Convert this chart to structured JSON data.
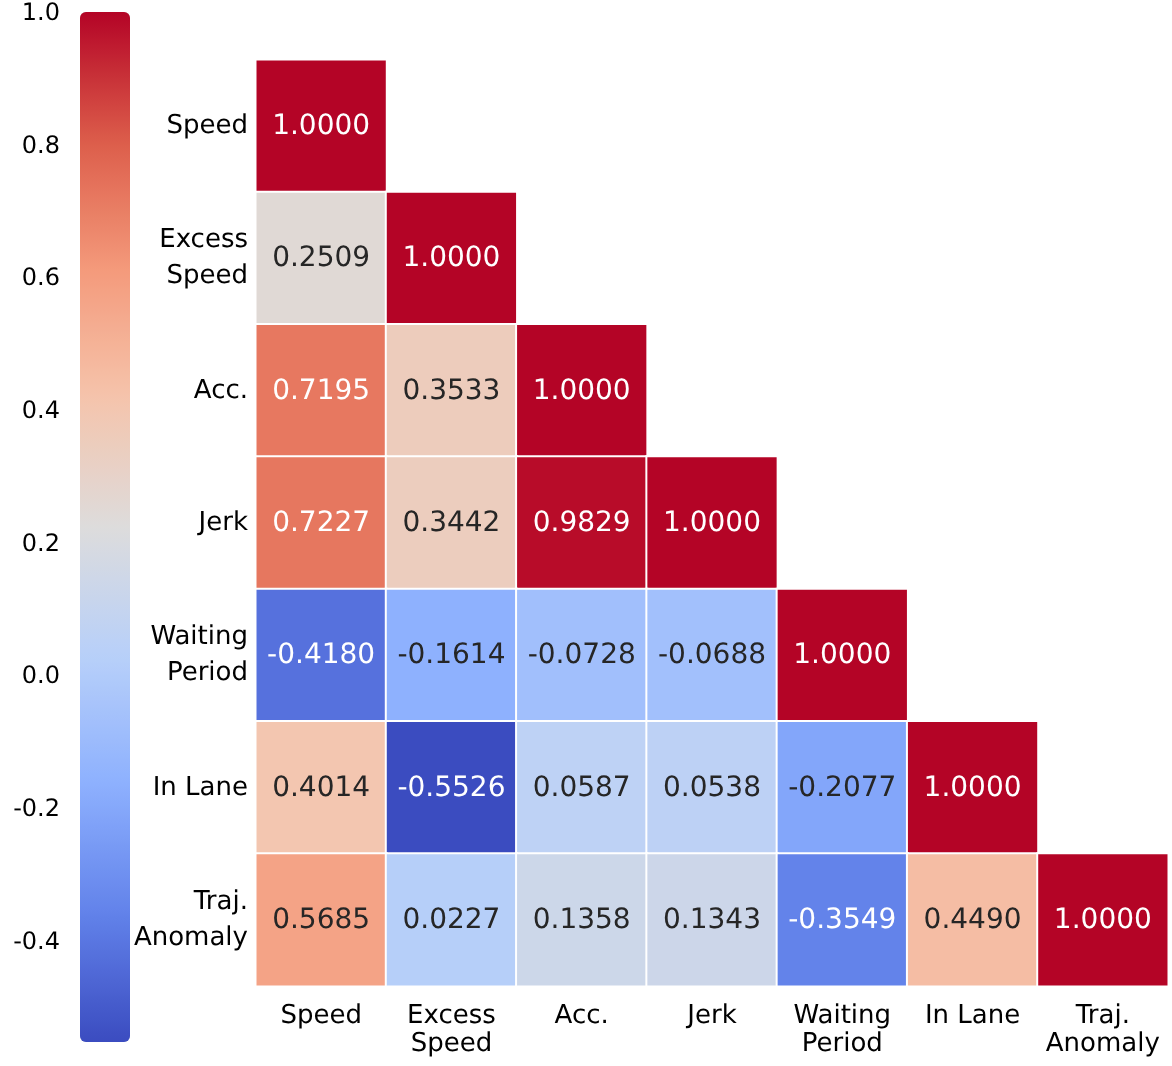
{
  "chart_data": {
    "type": "heatmap",
    "categories": [
      "Speed",
      "Excess\nSpeed",
      "Acc.",
      "Jerk",
      "Waiting\nPeriod",
      "In Lane",
      "Traj.\nAnomaly"
    ],
    "y_categories": [
      "Speed",
      "Excess\nSpeed",
      "Acc.",
      "Jerk",
      "Waiting\nPeriod",
      "In Lane",
      "Traj.\nAnomaly"
    ],
    "cells": [
      [
        1.0,
        null,
        null,
        null,
        null,
        null,
        null
      ],
      [
        0.2509,
        1.0,
        null,
        null,
        null,
        null,
        null
      ],
      [
        0.7195,
        0.3533,
        1.0,
        null,
        null,
        null,
        null
      ],
      [
        0.7227,
        0.3442,
        0.9829,
        1.0,
        null,
        null,
        null
      ],
      [
        -0.418,
        -0.1614,
        -0.0728,
        -0.0688,
        1.0,
        null,
        null
      ],
      [
        0.4014,
        -0.5526,
        0.0587,
        0.0538,
        -0.2077,
        1.0,
        null
      ],
      [
        0.5685,
        0.0227,
        0.1358,
        0.1343,
        -0.3549,
        0.449,
        1.0
      ]
    ],
    "cell_labels": [
      [
        "1.0000",
        null,
        null,
        null,
        null,
        null,
        null
      ],
      [
        "0.2509",
        "1.0000",
        null,
        null,
        null,
        null,
        null
      ],
      [
        "0.7195",
        "0.3533",
        "1.0000",
        null,
        null,
        null,
        null
      ],
      [
        "0.7227",
        "0.3442",
        "0.9829",
        "1.0000",
        null,
        null,
        null
      ],
      [
        "-0.4180",
        "-0.1614",
        "-0.0728",
        "-0.0688",
        "1.0000",
        null,
        null
      ],
      [
        "0.4014",
        "-0.5526",
        "0.0587",
        "0.0538",
        "-0.2077",
        "1.0000",
        null
      ],
      [
        "0.5685",
        "0.0227",
        "0.1358",
        "0.1343",
        "-0.3549",
        "0.4490",
        "1.0000"
      ]
    ],
    "clim": [
      -0.5526,
      1.0
    ],
    "cticks": [
      {
        "value": -0.4,
        "label": "-0.4"
      },
      {
        "value": -0.2,
        "label": "-0.2"
      },
      {
        "value": 0,
        "label": "0.0"
      },
      {
        "value": 0.2,
        "label": "0.2"
      },
      {
        "value": 0.4,
        "label": "0.4"
      },
      {
        "value": 0.6,
        "label": "0.6"
      },
      {
        "value": 0.8,
        "label": "0.8"
      },
      {
        "value": 1.0,
        "label": "1.0"
      }
    ]
  }
}
